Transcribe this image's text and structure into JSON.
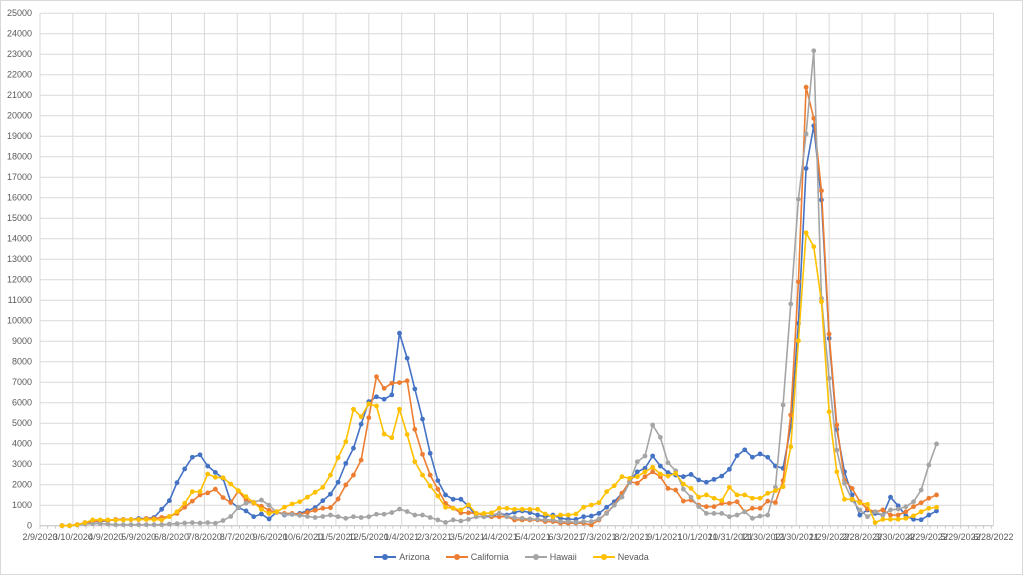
{
  "chart_data": {
    "type": "line",
    "title": "",
    "xlabel": "",
    "ylabel": "",
    "ylim": [
      0,
      25000
    ],
    "y_tick_step": 1000,
    "grid": true,
    "legend_position": "bottom",
    "x_start_date": "2020-02-29",
    "x_interval_days": 7,
    "x_axis_start_date": "2020-02-09",
    "x_axis_end_date": "2022-06-28",
    "x_tick_labels": [
      "2/9/2020",
      "3/10/2020",
      "4/9/2020",
      "5/9/2020",
      "6/8/2020",
      "7/8/2020",
      "8/7/2020",
      "9/6/2020",
      "10/6/2020",
      "11/5/2020",
      "12/5/2020",
      "1/4/2021",
      "2/3/2021",
      "3/5/2021",
      "4/4/2021",
      "5/4/2021",
      "6/3/2021",
      "7/3/2021",
      "8/2/2021",
      "9/1/2021",
      "10/1/2021",
      "10/31/2021",
      "11/30/2021",
      "12/30/2021",
      "1/29/2022",
      "2/28/2022",
      "3/30/2022",
      "4/29/2022",
      "5/29/2022",
      "6/28/2022"
    ],
    "y_tick_labels": [
      "0",
      "1000",
      "2000",
      "3000",
      "4000",
      "5000",
      "6000",
      "7000",
      "8000",
      "9000",
      "10000",
      "11000",
      "12000",
      "13000",
      "14000",
      "15000",
      "16000",
      "17000",
      "18000",
      "19000",
      "20000",
      "21000",
      "22000",
      "23000",
      "24000",
      "25000"
    ],
    "series": [
      {
        "name": "Arizona",
        "color": "#4472C4",
        "values": [
          0,
          0,
          50,
          150,
          200,
          200,
          250,
          300,
          300,
          300,
          350,
          350,
          400,
          800,
          1220,
          2100,
          2770,
          3340,
          3460,
          2910,
          2600,
          2310,
          1170,
          880,
          720,
          440,
          570,
          330,
          680,
          520,
          560,
          600,
          730,
          880,
          1220,
          1540,
          2120,
          3040,
          3780,
          4950,
          6050,
          6290,
          6170,
          6380,
          9390,
          8170,
          6670,
          5200,
          3530,
          2200,
          1500,
          1290,
          1290,
          960,
          440,
          440,
          440,
          600,
          520,
          660,
          720,
          640,
          520,
          440,
          520,
          360,
          310,
          310,
          440,
          470,
          600,
          900,
          1170,
          1580,
          2150,
          2630,
          2800,
          3400,
          2910,
          2590,
          2470,
          2390,
          2500,
          2230,
          2120,
          2260,
          2420,
          2750,
          3420,
          3700,
          3340,
          3500,
          3340,
          2910,
          2800,
          4830,
          9870,
          17430,
          19510,
          15890,
          9140,
          4700,
          2630,
          1500,
          520,
          770,
          600,
          520,
          1390,
          970,
          480,
          310,
          290,
          520,
          720
        ]
      },
      {
        "name": "California",
        "color": "#ED7D31",
        "values": [
          0,
          0,
          50,
          100,
          200,
          250,
          250,
          300,
          300,
          300,
          300,
          350,
          350,
          400,
          450,
          600,
          900,
          1200,
          1500,
          1600,
          1780,
          1370,
          1130,
          1690,
          1250,
          1100,
          950,
          750,
          650,
          600,
          600,
          550,
          650,
          750,
          850,
          880,
          1300,
          1990,
          2470,
          3200,
          5270,
          7270,
          6700,
          6950,
          6980,
          7070,
          4700,
          3480,
          2470,
          1780,
          1090,
          850,
          630,
          630,
          600,
          520,
          440,
          440,
          440,
          280,
          280,
          280,
          280,
          200,
          200,
          120,
          120,
          120,
          120,
          40,
          280,
          630,
          1010,
          1580,
          2150,
          2070,
          2390,
          2630,
          2390,
          1820,
          1740,
          1200,
          1250,
          1000,
          930,
          930,
          1090,
          1090,
          1170,
          680,
          850,
          850,
          1200,
          1130,
          2200,
          5400,
          11900,
          21390,
          19870,
          16340,
          9350,
          4910,
          2230,
          1820,
          1170,
          810,
          680,
          770,
          520,
          520,
          680,
          930,
          1120,
          1340,
          1500
        ]
      },
      {
        "name": "Hawaii",
        "color": "#A5A5A5",
        "values": [
          0,
          0,
          30,
          80,
          100,
          100,
          80,
          50,
          50,
          50,
          50,
          50,
          50,
          50,
          80,
          100,
          130,
          150,
          130,
          150,
          120,
          250,
          450,
          900,
          1100,
          1150,
          1250,
          1000,
          650,
          550,
          550,
          500,
          450,
          400,
          450,
          520,
          440,
          360,
          440,
          400,
          440,
          560,
          560,
          640,
          810,
          690,
          520,
          520,
          400,
          280,
          160,
          280,
          230,
          310,
          440,
          440,
          520,
          600,
          440,
          390,
          360,
          330,
          310,
          280,
          280,
          200,
          200,
          160,
          200,
          200,
          330,
          600,
          1000,
          1400,
          2100,
          3120,
          3400,
          4910,
          4310,
          3070,
          2680,
          1780,
          1390,
          930,
          600,
          600,
          600,
          440,
          520,
          680,
          360,
          470,
          520,
          1870,
          5890,
          10820,
          15930,
          19110,
          23170,
          11090,
          7190,
          3690,
          2070,
          1250,
          770,
          440,
          680,
          520,
          770,
          810,
          930,
          1170,
          1740,
          2960,
          3990
        ]
      },
      {
        "name": "Nevada",
        "color": "#FFC000",
        "values": [
          0,
          0,
          50,
          150,
          280,
          280,
          280,
          280,
          280,
          300,
          300,
          300,
          300,
          280,
          440,
          680,
          1090,
          1660,
          1660,
          2520,
          2360,
          2340,
          2030,
          1710,
          1420,
          1130,
          800,
          600,
          680,
          900,
          1060,
          1170,
          1390,
          1630,
          1870,
          2470,
          3320,
          4100,
          5680,
          5320,
          5940,
          5840,
          4470,
          4290,
          5680,
          4450,
          3120,
          2470,
          1940,
          1450,
          900,
          850,
          770,
          1010,
          600,
          600,
          630,
          850,
          850,
          800,
          800,
          800,
          800,
          570,
          440,
          520,
          520,
          570,
          900,
          1010,
          1120,
          1660,
          1950,
          2390,
          2310,
          2390,
          2630,
          2850,
          2520,
          2420,
          2550,
          2030,
          1820,
          1390,
          1500,
          1340,
          1220,
          1870,
          1500,
          1500,
          1340,
          1340,
          1580,
          1710,
          1900,
          3850,
          9020,
          14290,
          13610,
          10930,
          5560,
          2630,
          1290,
          1290,
          1120,
          1040,
          150,
          310,
          310,
          310,
          360,
          480,
          680,
          850,
          900
        ]
      }
    ]
  }
}
